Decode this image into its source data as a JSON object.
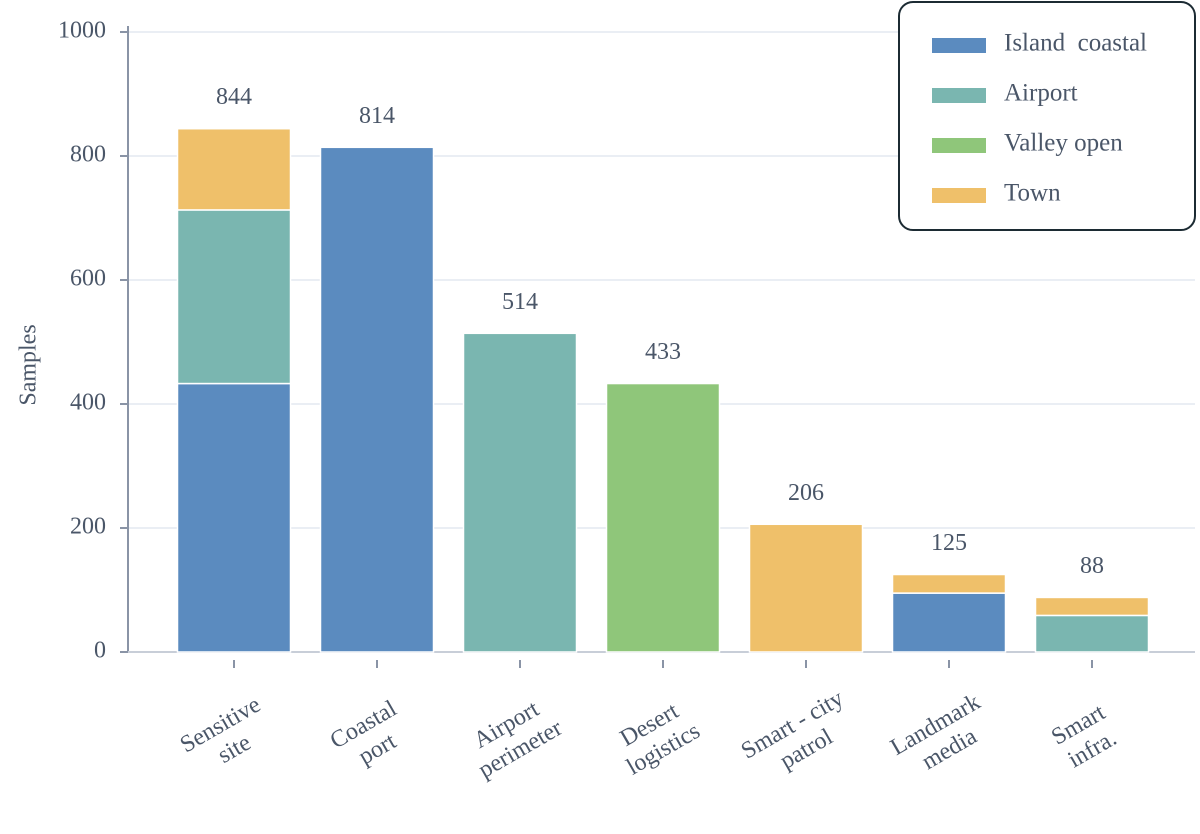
{
  "chart_data": {
    "type": "stacked_bar",
    "y_label": "Samples",
    "categories": [
      "Sensitive\nsite",
      "Coastal\nport",
      "Airport\nperimeter",
      "Desert\nlogistics",
      "Smart - city\npatrol",
      "Landmark\nmedia",
      "Smart\ninfra."
    ],
    "series": [
      {
        "name": "Island  coastal",
        "color": "#5b8bbf",
        "values": [
          433,
          814,
          null,
          null,
          null,
          95,
          null
        ]
      },
      {
        "name": "Airport",
        "color": "#7ab6b0",
        "values": [
          280,
          null,
          514,
          null,
          null,
          null,
          59
        ]
      },
      {
        "name": "Valley open",
        "color": "#8fc67a",
        "values": [
          null,
          null,
          null,
          433,
          null,
          null,
          null
        ]
      },
      {
        "name": "Town",
        "color": "#efc06a",
        "values": [
          131,
          null,
          null,
          null,
          206,
          30,
          29
        ]
      }
    ],
    "totals": [
      844,
      814,
      514,
      433,
      206,
      125,
      88
    ],
    "ylim": [
      0,
      1000
    ],
    "yticks": [
      0,
      200,
      400,
      600,
      800,
      1000
    ],
    "grid": true,
    "legend": "upper right"
  }
}
